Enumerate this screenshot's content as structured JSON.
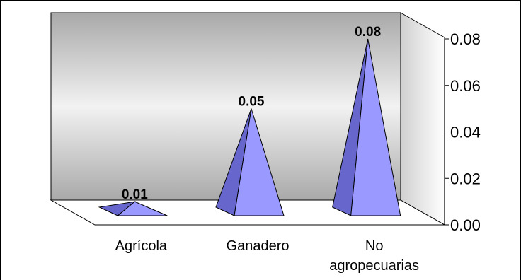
{
  "chart_data": {
    "type": "bar",
    "shape": "3d-pyramid",
    "categories": [
      "Agrícola",
      "Ganadero",
      "No agropecuarias"
    ],
    "category_lines": [
      [
        "Agrícola"
      ],
      [
        "Ganadero"
      ],
      [
        "No",
        "agropecuarias"
      ]
    ],
    "values": [
      0.01,
      0.05,
      0.08
    ],
    "value_labels": [
      "0.01",
      "0.05",
      "0.08"
    ],
    "ylim": [
      0,
      0.08
    ],
    "yticks": [
      "0.00",
      "0.02",
      "0.04",
      "0.06",
      "0.08"
    ],
    "title": "",
    "xlabel": "",
    "ylabel": "",
    "legend": "none",
    "colors": {
      "pyramid_front": "#9999ff",
      "pyramid_side": "#6666cc",
      "wall_light": "#e6e6e6",
      "wall_dark": "#b3b3b3",
      "floor": "#ffffff"
    }
  }
}
